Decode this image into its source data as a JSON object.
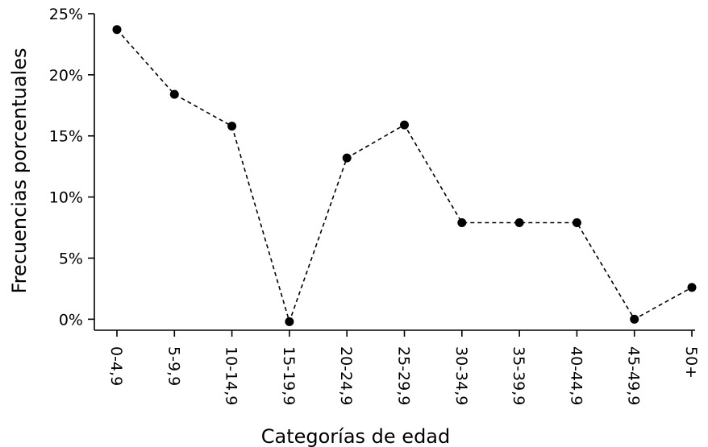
{
  "chart_data": {
    "type": "line",
    "xlabel": "Categorías de edad",
    "ylabel": "Frecuencias porcentuales",
    "categories": [
      "0-4,9",
      "5-9,9",
      "10-14,9",
      "15-19,9",
      "20-24,9",
      "25-29,9",
      "30-34,9",
      "35-39,9",
      "40-44,9",
      "45-49,9",
      "50+"
    ],
    "values": [
      23.7,
      18.4,
      15.8,
      -0.2,
      13.2,
      15.9,
      7.9,
      7.9,
      7.9,
      0.0,
      2.6
    ],
    "ylim": [
      -0.9,
      25
    ],
    "yticks": [
      0,
      5,
      10,
      15,
      20,
      25
    ],
    "ytick_labels": [
      "0%",
      "5%",
      "10%",
      "15%",
      "20%",
      "25%"
    ],
    "line_style": "dashed",
    "marker": "circle",
    "grid": false,
    "colors": {
      "line": "#000000",
      "marker": "#000000"
    }
  }
}
